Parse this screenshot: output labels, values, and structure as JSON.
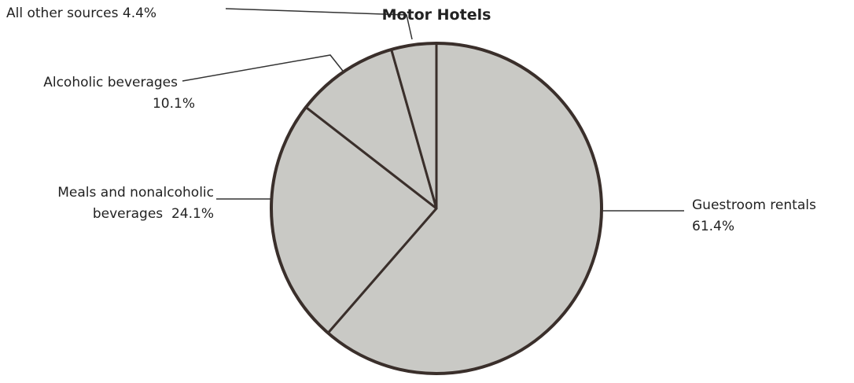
{
  "chart_data": {
    "type": "pie",
    "title": "Motor Hotels",
    "categories": [
      "Guestroom rentals",
      "Meals and nonalcoholic beverages",
      "Alcoholic beverages",
      "All other sources"
    ],
    "values": [
      61.4,
      24.1,
      10.1,
      4.4
    ],
    "value_labels": [
      "61.4%",
      "24.1%",
      "10.1%",
      "4.4%"
    ],
    "color": "#c9c9c5"
  }
}
